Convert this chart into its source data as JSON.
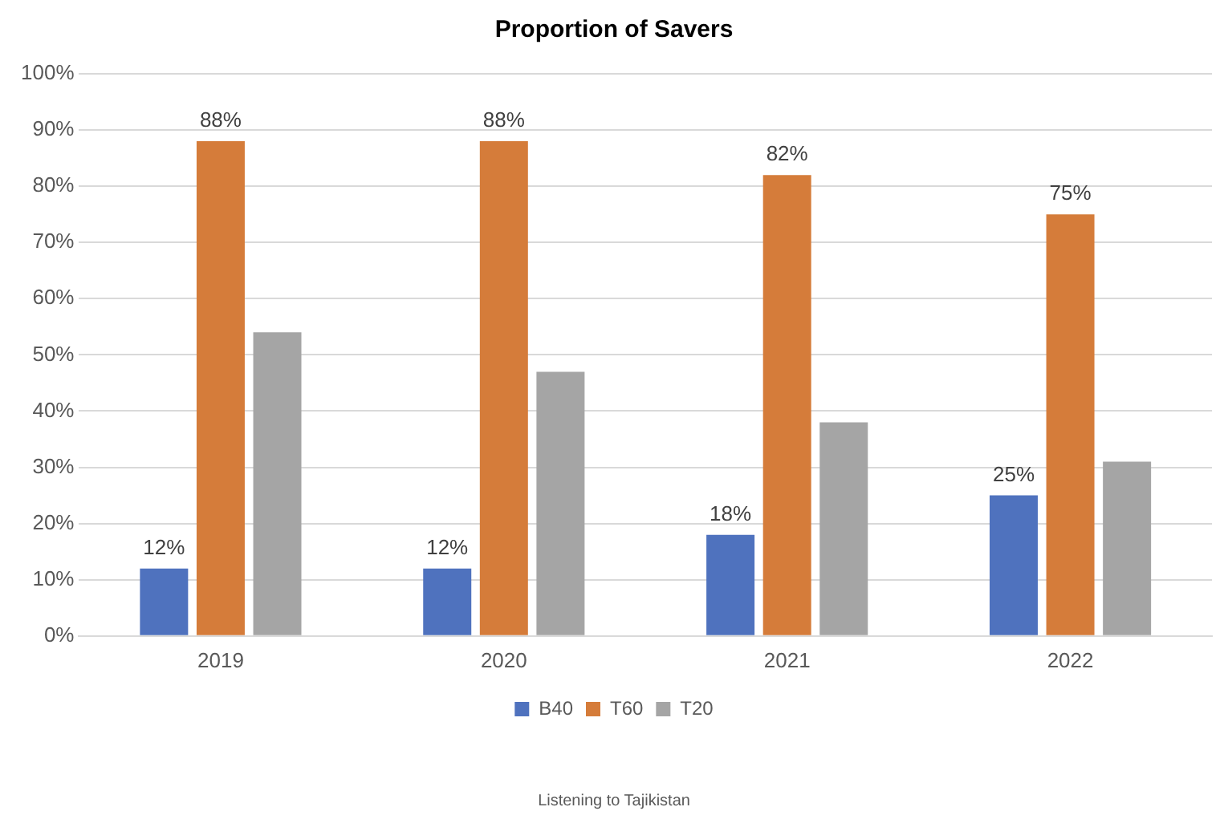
{
  "chart_data": {
    "type": "bar",
    "title": "Proportion of Savers",
    "categories": [
      "2019",
      "2020",
      "2021",
      "2022"
    ],
    "series": [
      {
        "name": "B40",
        "color": "#4f72be",
        "values": [
          12,
          12,
          18,
          25
        ],
        "value_labels": [
          "12%",
          "12%",
          "18%",
          "25%"
        ]
      },
      {
        "name": "T60",
        "color": "#d57c3a",
        "values": [
          88,
          88,
          82,
          75
        ],
        "value_labels": [
          "88%",
          "88%",
          "82%",
          "75%"
        ]
      },
      {
        "name": "T20",
        "color": "#a5a5a5",
        "values": [
          54,
          47,
          38,
          31
        ]
      }
    ],
    "ylim": [
      0,
      100
    ],
    "yticks": [
      {
        "value": 0,
        "label": "0%"
      },
      {
        "value": 10,
        "label": "10%"
      },
      {
        "value": 20,
        "label": "20%"
      },
      {
        "value": 30,
        "label": "30%"
      },
      {
        "value": 40,
        "label": "40%"
      },
      {
        "value": 50,
        "label": "50%"
      },
      {
        "value": 60,
        "label": "60%"
      },
      {
        "value": 70,
        "label": "70%"
      },
      {
        "value": 80,
        "label": "80%"
      },
      {
        "value": 90,
        "label": "90%"
      },
      {
        "value": 100,
        "label": "100%"
      }
    ],
    "grid": "y",
    "legend": "bottom",
    "annotations": [
      "Listening to Tajikistan"
    ]
  }
}
